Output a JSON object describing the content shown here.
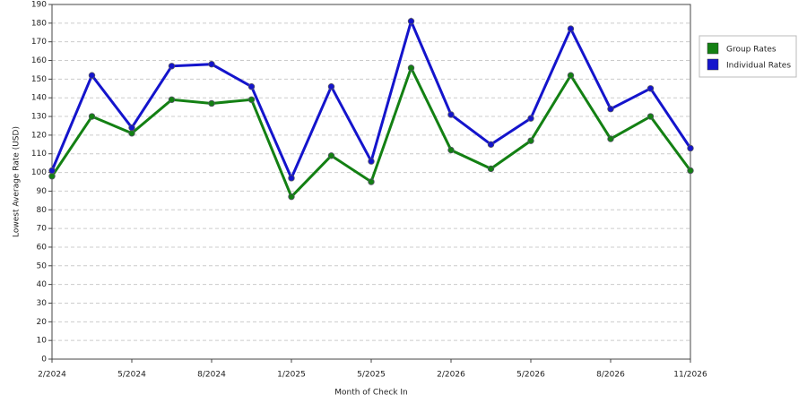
{
  "chart_data": {
    "type": "line",
    "x_label": "Month of Check In",
    "y_label": "Lowest Average Rate (USD)",
    "categories": [
      "2/2024",
      null,
      "5/2024",
      null,
      "8/2024",
      null,
      "1/2025",
      null,
      "5/2025",
      null,
      "2/2026",
      null,
      "5/2026",
      null,
      "8/2026",
      null,
      "11/2026"
    ],
    "series": [
      {
        "name": "Group Rates",
        "color": "#138013",
        "values": [
          98,
          130,
          121,
          139,
          137,
          139,
          87,
          109,
          95,
          156,
          112,
          102,
          117,
          152,
          118,
          130,
          101
        ]
      },
      {
        "name": "Individual Rates",
        "color": "#1414cc",
        "values": [
          101,
          152,
          124,
          157,
          158,
          146,
          97,
          146,
          106,
          181,
          131,
          115,
          129,
          177,
          134,
          145,
          113
        ]
      }
    ],
    "ylim": [
      0,
      190
    ],
    "yticks": [
      0,
      10,
      20,
      30,
      40,
      50,
      60,
      70,
      80,
      90,
      100,
      110,
      120,
      130,
      140,
      150,
      160,
      170,
      180,
      190
    ],
    "grid": true,
    "legend": "right"
  }
}
